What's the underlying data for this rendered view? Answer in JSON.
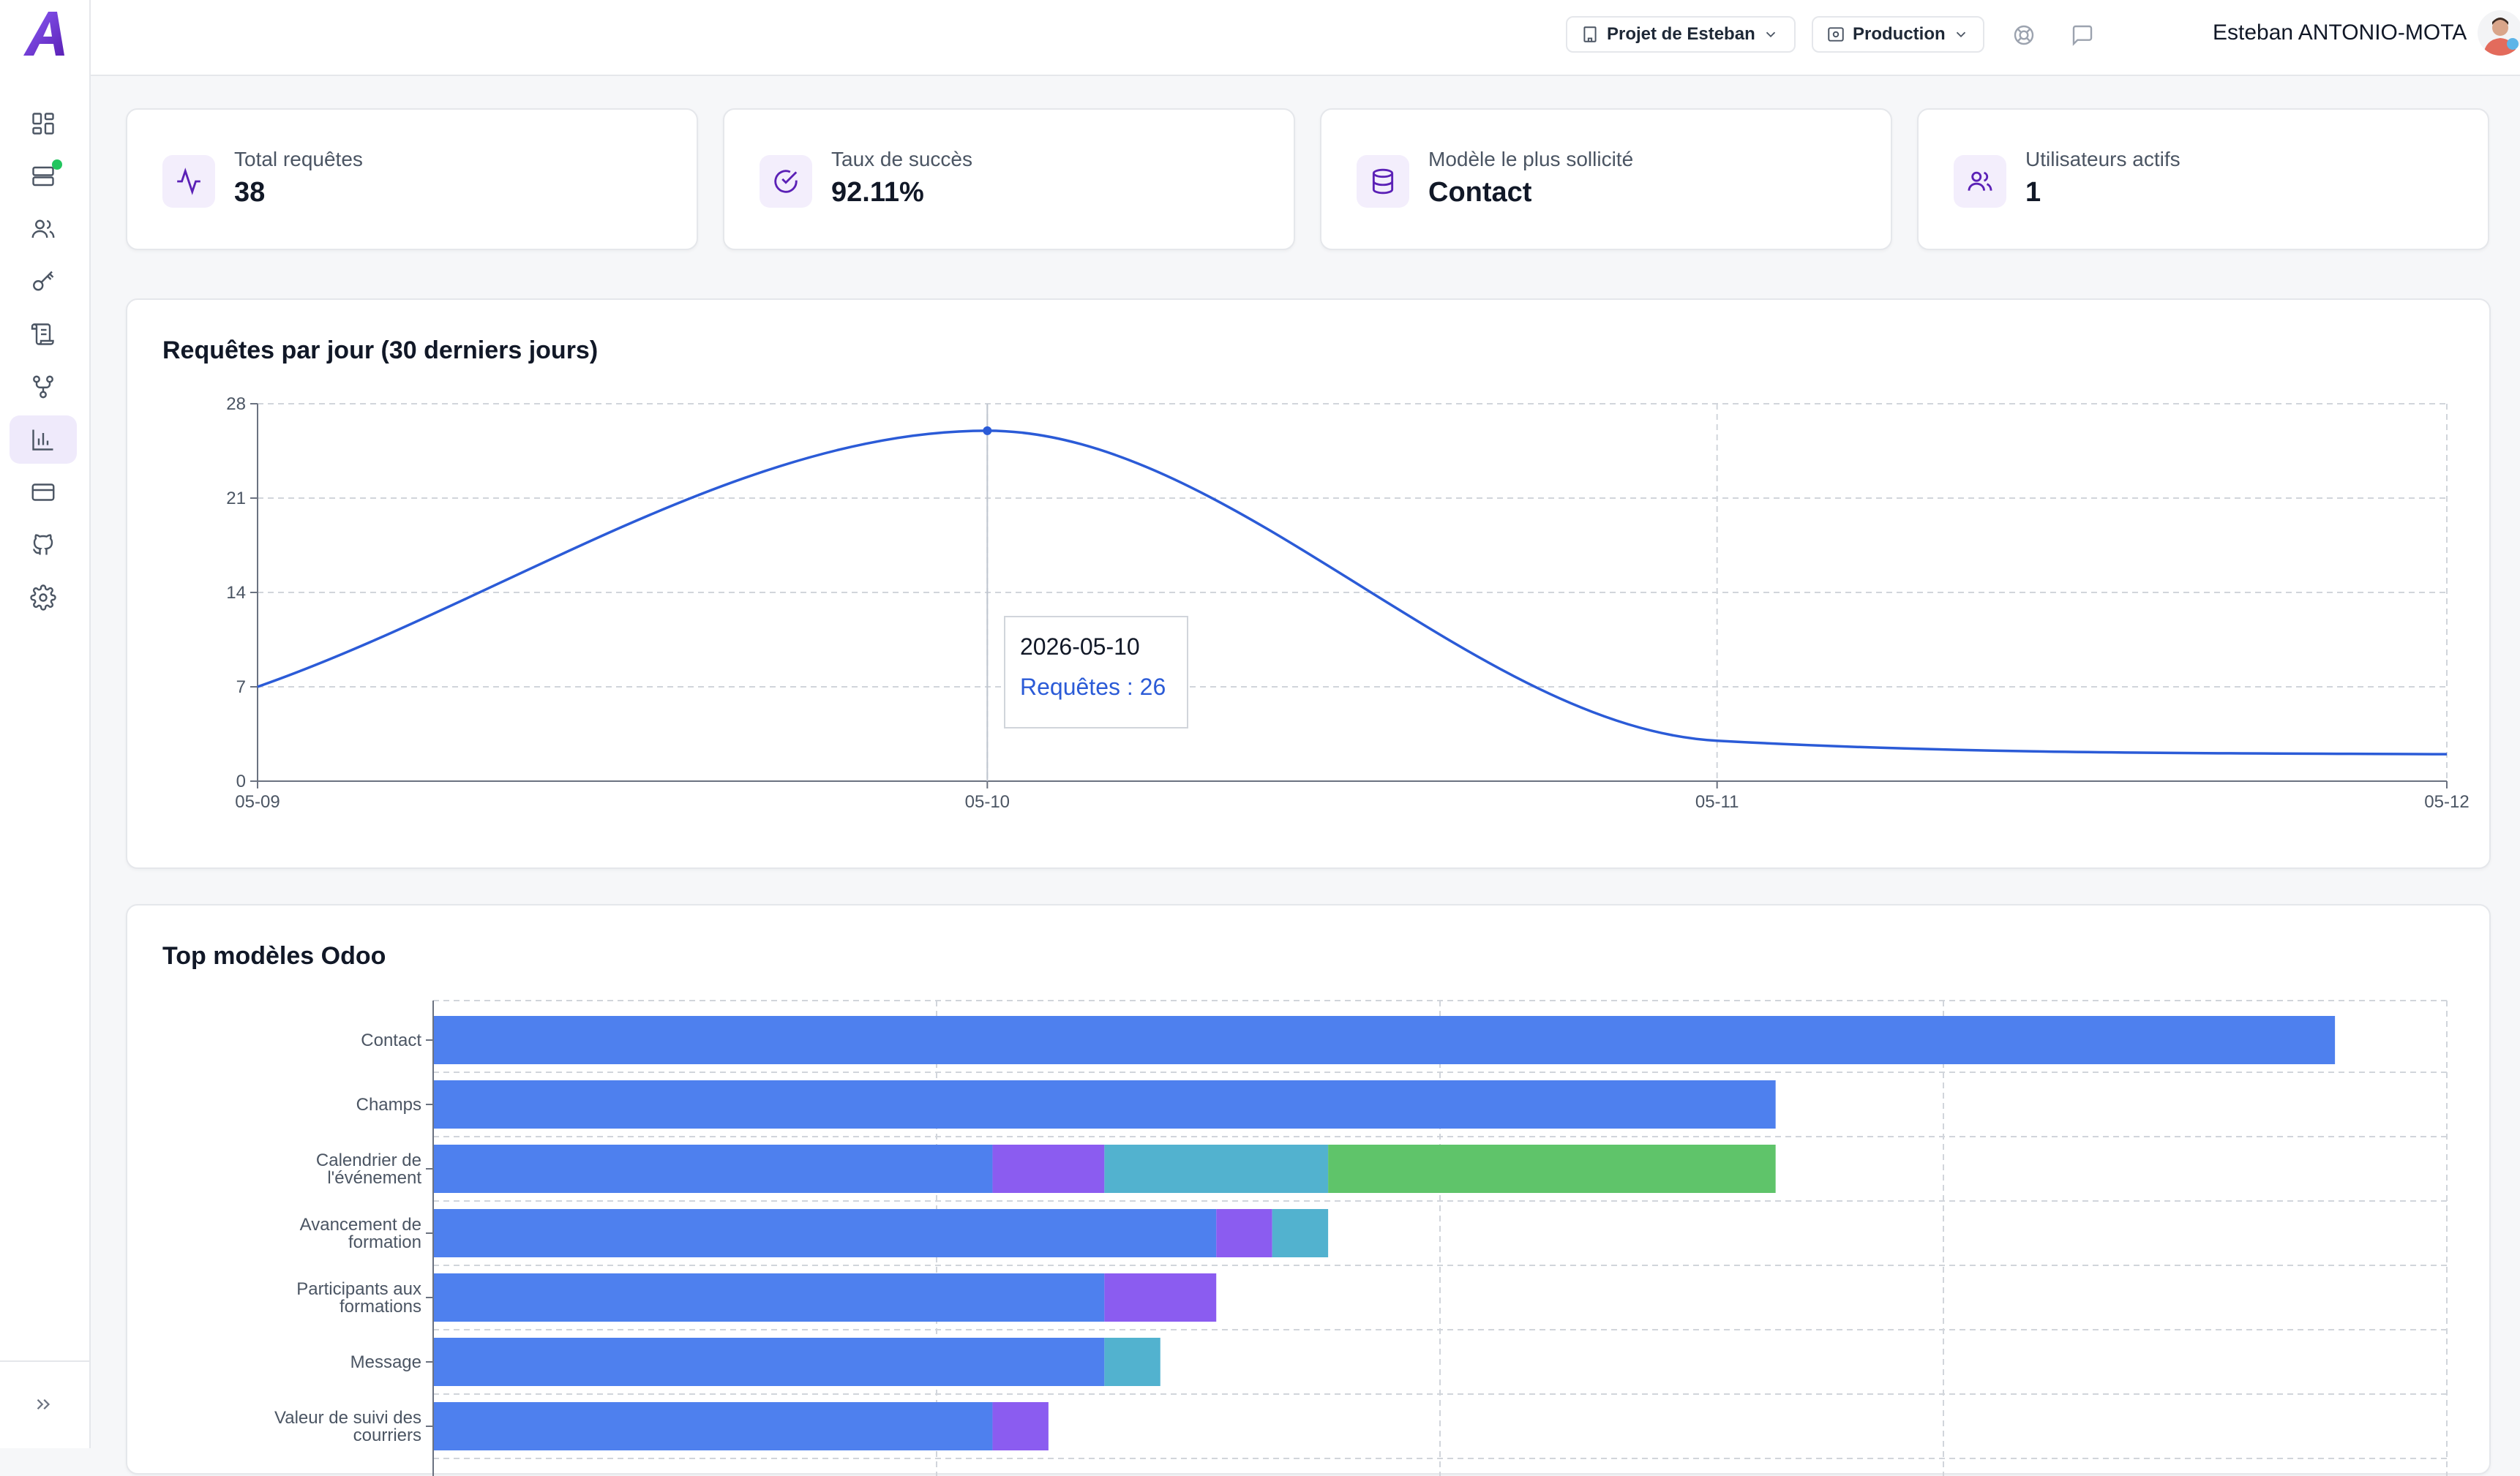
{
  "header": {
    "project_label": "Projet de Esteban",
    "env_label": "Production",
    "user_name": "Esteban ANTONIO-MOTA"
  },
  "sidebar": {
    "items": [
      {
        "name": "dashboard",
        "icon": "dashboard-icon"
      },
      {
        "name": "servers",
        "icon": "server-icon"
      },
      {
        "name": "users",
        "icon": "users-icon"
      },
      {
        "name": "keys",
        "icon": "key-icon"
      },
      {
        "name": "logs",
        "icon": "scroll-icon"
      },
      {
        "name": "workflows",
        "icon": "workflow-icon"
      },
      {
        "name": "analytics",
        "icon": "bar-chart-icon"
      },
      {
        "name": "billing",
        "icon": "credit-card-icon"
      },
      {
        "name": "github",
        "icon": "github-icon"
      },
      {
        "name": "settings",
        "icon": "gear-icon"
      }
    ]
  },
  "kpis": [
    {
      "label": "Total requêtes",
      "value": "38",
      "icon": "activity-icon"
    },
    {
      "label": "Taux de succès",
      "value": "92.11%",
      "icon": "check-circle-icon"
    },
    {
      "label": "Modèle le plus sollicité",
      "value": "Contact",
      "icon": "database-icon"
    },
    {
      "label": "Utilisateurs actifs",
      "value": "1",
      "icon": "users-icon"
    }
  ],
  "colors": {
    "accent": "#7c3aed",
    "line": "#2b5bd7",
    "bar_blue": "#4e80ee",
    "bar_purple": "#8b5cf0",
    "bar_cyan": "#52b2cf",
    "bar_green": "#5fc46a",
    "status_online": "#22c55e"
  },
  "line_chart": {
    "title": "Requêtes par jour (30 derniers jours)",
    "tooltip": {
      "date": "2026-05-10",
      "text": "Requêtes : 26"
    },
    "chart_data": {
      "type": "line",
      "x": [
        "05-09",
        "05-10",
        "05-11",
        "05-12"
      ],
      "values": [
        7,
        26,
        3,
        2
      ],
      "y_ticks": [
        0,
        7,
        14,
        21,
        28
      ],
      "ylim": [
        0,
        28
      ],
      "grid": true
    }
  },
  "bar_chart": {
    "title": "Top modèles Odoo",
    "chart_data": {
      "type": "bar",
      "orientation": "horizontal",
      "stacked": true,
      "categories": [
        [
          "Contact"
        ],
        [
          "Champs"
        ],
        [
          "Calendrier de",
          "l'événement"
        ],
        [
          "Avancement de",
          "formation"
        ],
        [
          "Participants aux",
          "formations"
        ],
        [
          "Message"
        ],
        [
          "Valeur de suivi des",
          "courriers"
        ]
      ],
      "series": [
        {
          "color": "#4e80ee",
          "values": [
            34,
            24,
            10,
            14,
            12,
            12,
            10
          ]
        },
        {
          "color": "#8b5cf0",
          "values": [
            0,
            0,
            2,
            1,
            2,
            0,
            1
          ]
        },
        {
          "color": "#52b2cf",
          "values": [
            0,
            0,
            4,
            1,
            0,
            1,
            0
          ]
        },
        {
          "color": "#5fc46a",
          "values": [
            0,
            0,
            8,
            0,
            0,
            0,
            0
          ]
        }
      ],
      "xlim": [
        0,
        36
      ],
      "grid": true
    }
  }
}
